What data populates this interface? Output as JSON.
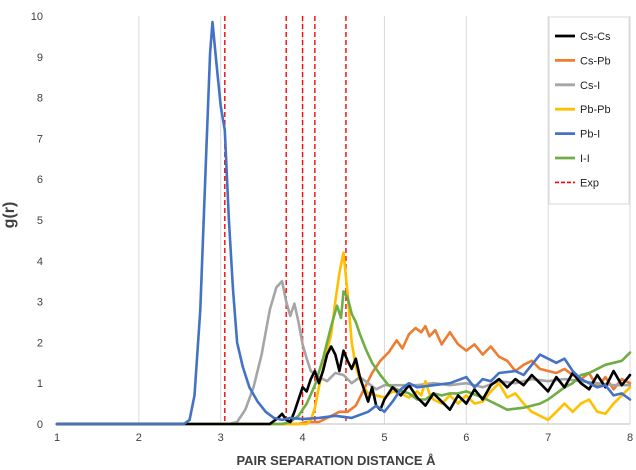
{
  "chart_data": {
    "type": "line",
    "xlabel": "PAIR SEPARATION DISTANCE Å",
    "ylabel": "g(r)",
    "xlim": [
      1,
      8
    ],
    "ylim": [
      0,
      10
    ],
    "x_ticks": [
      1,
      2,
      3,
      4,
      5,
      6,
      7,
      8
    ],
    "y_ticks": [
      0,
      1,
      2,
      3,
      4,
      5,
      6,
      7,
      8,
      9,
      10
    ],
    "grid": "vertical",
    "legend_position": "top-right",
    "series": [
      {
        "name": "Cs-Cs",
        "color": "#000000",
        "points": [
          [
            1,
            0
          ],
          [
            3.6,
            0
          ],
          [
            3.7,
            0.15
          ],
          [
            3.75,
            0.25
          ],
          [
            3.8,
            0.1
          ],
          [
            3.85,
            0.05
          ],
          [
            3.9,
            0.3
          ],
          [
            3.95,
            0.6
          ],
          [
            4.0,
            0.9
          ],
          [
            4.05,
            0.8
          ],
          [
            4.1,
            1.1
          ],
          [
            4.15,
            1.3
          ],
          [
            4.2,
            1.0
          ],
          [
            4.25,
            1.3
          ],
          [
            4.3,
            1.7
          ],
          [
            4.35,
            1.9
          ],
          [
            4.4,
            1.7
          ],
          [
            4.45,
            1.3
          ],
          [
            4.5,
            1.8
          ],
          [
            4.55,
            1.55
          ],
          [
            4.6,
            1.35
          ],
          [
            4.65,
            1.6
          ],
          [
            4.7,
            1.15
          ],
          [
            4.75,
            0.85
          ],
          [
            4.8,
            0.55
          ],
          [
            4.85,
            0.9
          ],
          [
            4.9,
            0.45
          ],
          [
            4.95,
            0.35
          ],
          [
            5.0,
            0.6
          ],
          [
            5.1,
            0.9
          ],
          [
            5.2,
            0.7
          ],
          [
            5.3,
            0.95
          ],
          [
            5.4,
            0.65
          ],
          [
            5.5,
            0.45
          ],
          [
            5.6,
            0.75
          ],
          [
            5.7,
            0.55
          ],
          [
            5.8,
            0.35
          ],
          [
            5.9,
            0.7
          ],
          [
            6.0,
            0.5
          ],
          [
            6.1,
            0.85
          ],
          [
            6.2,
            0.6
          ],
          [
            6.3,
            0.95
          ],
          [
            6.4,
            1.1
          ],
          [
            6.5,
            0.9
          ],
          [
            6.6,
            1.1
          ],
          [
            6.7,
            0.95
          ],
          [
            6.8,
            1.2
          ],
          [
            6.9,
            1.0
          ],
          [
            7.0,
            0.8
          ],
          [
            7.1,
            1.15
          ],
          [
            7.2,
            0.9
          ],
          [
            7.3,
            1.25
          ],
          [
            7.4,
            1.0
          ],
          [
            7.5,
            0.85
          ],
          [
            7.6,
            1.2
          ],
          [
            7.7,
            0.9
          ],
          [
            7.8,
            1.3
          ],
          [
            7.9,
            0.95
          ],
          [
            8.0,
            1.2
          ]
        ]
      },
      {
        "name": "Cs-Pb",
        "color": "#ED7D31",
        "points": [
          [
            1,
            0
          ],
          [
            3.95,
            0
          ],
          [
            4.05,
            0.05
          ],
          [
            4.2,
            0.05
          ],
          [
            4.3,
            0.15
          ],
          [
            4.45,
            0.3
          ],
          [
            4.55,
            0.3
          ],
          [
            4.65,
            0.45
          ],
          [
            4.75,
            0.85
          ],
          [
            4.85,
            1.25
          ],
          [
            4.95,
            1.55
          ],
          [
            5.05,
            1.75
          ],
          [
            5.15,
            2.05
          ],
          [
            5.22,
            1.85
          ],
          [
            5.3,
            2.2
          ],
          [
            5.38,
            2.35
          ],
          [
            5.45,
            2.25
          ],
          [
            5.5,
            2.4
          ],
          [
            5.55,
            2.15
          ],
          [
            5.62,
            2.3
          ],
          [
            5.7,
            1.95
          ],
          [
            5.8,
            2.25
          ],
          [
            5.9,
            1.95
          ],
          [
            6.0,
            1.8
          ],
          [
            6.1,
            1.95
          ],
          [
            6.2,
            1.7
          ],
          [
            6.3,
            1.9
          ],
          [
            6.4,
            1.65
          ],
          [
            6.5,
            1.55
          ],
          [
            6.6,
            1.3
          ],
          [
            6.7,
            1.45
          ],
          [
            6.8,
            1.55
          ],
          [
            6.9,
            1.35
          ],
          [
            7.0,
            1.3
          ],
          [
            7.1,
            1.25
          ],
          [
            7.2,
            1.35
          ],
          [
            7.3,
            1.2
          ],
          [
            7.4,
            1.1
          ],
          [
            7.5,
            1.25
          ],
          [
            7.6,
            0.9
          ],
          [
            7.7,
            1.15
          ],
          [
            7.8,
            0.85
          ],
          [
            7.9,
            1.1
          ],
          [
            8.0,
            1.0
          ]
        ]
      },
      {
        "name": "Cs-I",
        "color": "#A5A5A5",
        "points": [
          [
            1,
            0
          ],
          [
            3.1,
            0
          ],
          [
            3.2,
            0.05
          ],
          [
            3.3,
            0.35
          ],
          [
            3.4,
            0.9
          ],
          [
            3.5,
            1.7
          ],
          [
            3.6,
            2.8
          ],
          [
            3.68,
            3.35
          ],
          [
            3.75,
            3.5
          ],
          [
            3.8,
            3.0
          ],
          [
            3.85,
            2.65
          ],
          [
            3.9,
            2.95
          ],
          [
            3.95,
            2.5
          ],
          [
            4.0,
            1.95
          ],
          [
            4.05,
            1.6
          ],
          [
            4.1,
            1.3
          ],
          [
            4.2,
            1.15
          ],
          [
            4.3,
            1.05
          ],
          [
            4.4,
            1.25
          ],
          [
            4.5,
            1.2
          ],
          [
            4.6,
            1.0
          ],
          [
            4.7,
            1.15
          ],
          [
            4.8,
            1.0
          ],
          [
            4.9,
            0.85
          ],
          [
            5.0,
            0.95
          ],
          [
            5.2,
            0.95
          ],
          [
            5.4,
            0.95
          ],
          [
            5.6,
            1.0
          ],
          [
            5.8,
            0.95
          ],
          [
            6.0,
            1.0
          ],
          [
            6.2,
            0.9
          ],
          [
            6.4,
            1.05
          ],
          [
            6.6,
            1.0
          ],
          [
            6.8,
            1.1
          ],
          [
            7.0,
            1.05
          ],
          [
            7.2,
            1.1
          ],
          [
            7.4,
            1.05
          ],
          [
            7.6,
            1.0
          ],
          [
            7.8,
            0.95
          ],
          [
            8.0,
            0.95
          ]
        ]
      },
      {
        "name": "Pb-Pb",
        "color": "#FFC000",
        "points": [
          [
            1,
            0
          ],
          [
            4.05,
            0
          ],
          [
            4.1,
            0.1
          ],
          [
            4.15,
            0.4
          ],
          [
            4.2,
            0.9
          ],
          [
            4.25,
            1.35
          ],
          [
            4.3,
            1.8
          ],
          [
            4.35,
            2.2
          ],
          [
            4.4,
            3.0
          ],
          [
            4.45,
            3.7
          ],
          [
            4.5,
            4.2
          ],
          [
            4.55,
            3.2
          ],
          [
            4.6,
            2.0
          ],
          [
            4.65,
            1.4
          ],
          [
            4.7,
            1.1
          ],
          [
            4.75,
            0.9
          ],
          [
            4.8,
            0.75
          ],
          [
            4.9,
            0.7
          ],
          [
            5.0,
            0.65
          ],
          [
            5.1,
            0.8
          ],
          [
            5.2,
            0.75
          ],
          [
            5.3,
            0.65
          ],
          [
            5.4,
            0.8
          ],
          [
            5.45,
            0.7
          ],
          [
            5.5,
            1.05
          ],
          [
            5.55,
            0.75
          ],
          [
            5.6,
            0.6
          ],
          [
            5.7,
            0.5
          ],
          [
            5.8,
            0.7
          ],
          [
            5.9,
            0.5
          ],
          [
            6.0,
            0.7
          ],
          [
            6.1,
            0.5
          ],
          [
            6.2,
            0.55
          ],
          [
            6.3,
            0.8
          ],
          [
            6.4,
            1.0
          ],
          [
            6.5,
            0.65
          ],
          [
            6.6,
            0.75
          ],
          [
            6.7,
            0.5
          ],
          [
            6.8,
            0.3
          ],
          [
            6.9,
            0.2
          ],
          [
            7.0,
            0.1
          ],
          [
            7.1,
            0.3
          ],
          [
            7.2,
            0.5
          ],
          [
            7.3,
            0.3
          ],
          [
            7.4,
            0.5
          ],
          [
            7.5,
            0.6
          ],
          [
            7.6,
            0.3
          ],
          [
            7.7,
            0.25
          ],
          [
            7.8,
            0.5
          ],
          [
            7.9,
            0.7
          ],
          [
            8.0,
            0.9
          ]
        ]
      },
      {
        "name": "Pb-I",
        "color": "#4472C4",
        "points": [
          [
            1,
            0
          ],
          [
            2.55,
            0
          ],
          [
            2.62,
            0.1
          ],
          [
            2.68,
            0.7
          ],
          [
            2.75,
            2.8
          ],
          [
            2.82,
            6.5
          ],
          [
            2.87,
            9.1
          ],
          [
            2.9,
            9.85
          ],
          [
            2.95,
            8.8
          ],
          [
            3.0,
            7.8
          ],
          [
            3.05,
            7.2
          ],
          [
            3.1,
            5.0
          ],
          [
            3.15,
            3.3
          ],
          [
            3.2,
            2.0
          ],
          [
            3.27,
            1.4
          ],
          [
            3.35,
            0.9
          ],
          [
            3.45,
            0.55
          ],
          [
            3.55,
            0.3
          ],
          [
            3.65,
            0.15
          ],
          [
            3.75,
            0.1
          ],
          [
            3.85,
            0.15
          ],
          [
            4.0,
            0.12
          ],
          [
            4.2,
            0.15
          ],
          [
            4.4,
            0.2
          ],
          [
            4.6,
            0.15
          ],
          [
            4.8,
            0.3
          ],
          [
            4.9,
            0.45
          ],
          [
            5.0,
            0.3
          ],
          [
            5.1,
            0.55
          ],
          [
            5.2,
            0.85
          ],
          [
            5.3,
            1.0
          ],
          [
            5.4,
            0.9
          ],
          [
            5.6,
            0.95
          ],
          [
            5.8,
            1.0
          ],
          [
            6.0,
            1.15
          ],
          [
            6.1,
            0.9
          ],
          [
            6.2,
            1.1
          ],
          [
            6.3,
            1.05
          ],
          [
            6.4,
            1.25
          ],
          [
            6.6,
            1.3
          ],
          [
            6.7,
            1.2
          ],
          [
            6.8,
            1.45
          ],
          [
            6.9,
            1.7
          ],
          [
            7.0,
            1.6
          ],
          [
            7.1,
            1.5
          ],
          [
            7.2,
            1.6
          ],
          [
            7.3,
            1.3
          ],
          [
            7.4,
            1.1
          ],
          [
            7.6,
            0.9
          ],
          [
            7.7,
            0.95
          ],
          [
            7.8,
            0.7
          ],
          [
            7.9,
            0.75
          ],
          [
            8.0,
            0.6
          ]
        ]
      },
      {
        "name": "I-I",
        "color": "#70AD47",
        "points": [
          [
            1,
            0
          ],
          [
            3.75,
            0
          ],
          [
            3.85,
            0.05
          ],
          [
            3.95,
            0.2
          ],
          [
            4.05,
            0.5
          ],
          [
            4.15,
            0.95
          ],
          [
            4.25,
            1.6
          ],
          [
            4.35,
            2.4
          ],
          [
            4.42,
            2.9
          ],
          [
            4.47,
            2.6
          ],
          [
            4.5,
            3.25
          ],
          [
            4.55,
            3.1
          ],
          [
            4.6,
            2.7
          ],
          [
            4.65,
            2.5
          ],
          [
            4.7,
            2.2
          ],
          [
            4.78,
            1.8
          ],
          [
            4.85,
            1.5
          ],
          [
            4.95,
            1.2
          ],
          [
            5.05,
            0.95
          ],
          [
            5.15,
            0.85
          ],
          [
            5.3,
            0.75
          ],
          [
            5.4,
            0.6
          ],
          [
            5.5,
            0.6
          ],
          [
            5.6,
            0.75
          ],
          [
            5.7,
            0.7
          ],
          [
            5.8,
            0.75
          ],
          [
            5.9,
            0.75
          ],
          [
            6.0,
            0.8
          ],
          [
            6.2,
            0.65
          ],
          [
            6.4,
            0.45
          ],
          [
            6.5,
            0.35
          ],
          [
            6.7,
            0.4
          ],
          [
            6.9,
            0.5
          ],
          [
            7.0,
            0.6
          ],
          [
            7.1,
            0.75
          ],
          [
            7.2,
            0.9
          ],
          [
            7.3,
            1.0
          ],
          [
            7.4,
            1.2
          ],
          [
            7.5,
            1.25
          ],
          [
            7.6,
            1.35
          ],
          [
            7.7,
            1.45
          ],
          [
            7.8,
            1.5
          ],
          [
            7.9,
            1.55
          ],
          [
            8.0,
            1.75
          ]
        ]
      }
    ],
    "reference_lines": {
      "name": "Exp",
      "color": "#FF0000",
      "style": "dashed",
      "x": [
        3.05,
        3.8,
        4.0,
        4.15,
        4.53
      ]
    }
  }
}
